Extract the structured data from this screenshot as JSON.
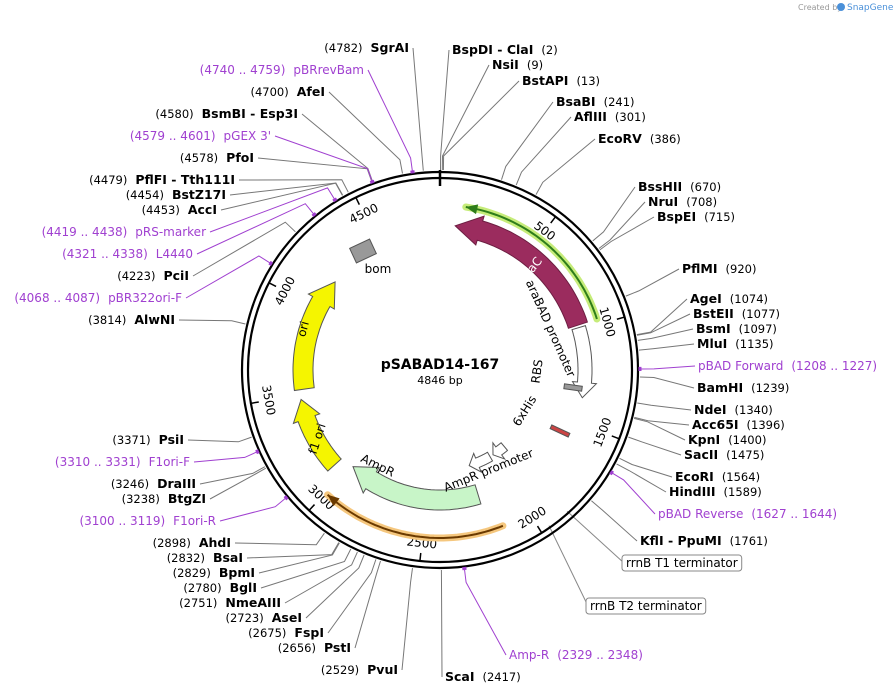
{
  "watermark": {
    "prefix": "Created by",
    "brand": "SnapGene"
  },
  "map": {
    "name": "pSABAD14-167",
    "size": "4846 bp"
  },
  "ruler": [
    "500",
    "1000",
    "1500",
    "2000",
    "2500",
    "3000",
    "3500",
    "4000",
    "4500"
  ],
  "features": [
    {
      "label": "araC"
    },
    {
      "label": "araBAD promoter"
    },
    {
      "label": "RBS"
    },
    {
      "label": "6xHis"
    },
    {
      "label": "AmpR promoter"
    },
    {
      "label": "AmpR"
    },
    {
      "label": "ori"
    },
    {
      "label": "f1 ori"
    },
    {
      "label": "bom"
    }
  ],
  "terminators": [
    "rrnB T1 terminator",
    "rrnB T2 terminator"
  ],
  "sites": [
    {
      "name": "SgrAI",
      "position": "(4782)"
    },
    {
      "name": "AfeI",
      "position": "(4700)"
    },
    {
      "name": "BsmBI  -  Esp3I",
      "position": "(4580)"
    },
    {
      "name": "PfoI",
      "position": "(4578)"
    },
    {
      "name": "PflFI  -  Tth111I",
      "position": "(4479)"
    },
    {
      "name": "BstZ17I",
      "position": "(4454)"
    },
    {
      "name": "AccI",
      "position": "(4453)"
    },
    {
      "name": "PciI",
      "position": "(4223)"
    },
    {
      "name": "AlwNI",
      "position": "(3814)"
    },
    {
      "name": "PsiI",
      "position": "(3371)"
    },
    {
      "name": "DraIII",
      "position": "(3246)"
    },
    {
      "name": "BtgZI",
      "position": "(3238)"
    },
    {
      "name": "AhdI",
      "position": "(2898)"
    },
    {
      "name": "BsaI",
      "position": "(2832)"
    },
    {
      "name": "BpmI",
      "position": "(2829)"
    },
    {
      "name": "BglI",
      "position": "(2780)"
    },
    {
      "name": "NmeAIII",
      "position": "(2751)"
    },
    {
      "name": "AseI",
      "position": "(2723)"
    },
    {
      "name": "FspI",
      "position": "(2675)"
    },
    {
      "name": "PstI",
      "position": "(2656)"
    },
    {
      "name": "PvuI",
      "position": "(2529)"
    },
    {
      "name": "ScaI",
      "position": "(2417)"
    },
    {
      "name": "KflI  -  PpuMI",
      "position": "(1761)"
    },
    {
      "name": "HindIII",
      "position": "(1589)"
    },
    {
      "name": "EcoRI",
      "position": "(1564)"
    },
    {
      "name": "SacII",
      "position": "(1475)"
    },
    {
      "name": "KpnI",
      "position": "(1400)"
    },
    {
      "name": "Acc65I",
      "position": "(1396)"
    },
    {
      "name": "NdeI",
      "position": "(1340)"
    },
    {
      "name": "BamHI",
      "position": "(1239)"
    },
    {
      "name": "MluI",
      "position": "(1135)"
    },
    {
      "name": "BsmI",
      "position": "(1097)"
    },
    {
      "name": "BstEII",
      "position": "(1077)"
    },
    {
      "name": "AgeI",
      "position": "(1074)"
    },
    {
      "name": "PflMI",
      "position": "(920)"
    },
    {
      "name": "BspEI",
      "position": "(715)"
    },
    {
      "name": "NruI",
      "position": "(708)"
    },
    {
      "name": "BssHII",
      "position": "(670)"
    },
    {
      "name": "EcoRV",
      "position": "(386)"
    },
    {
      "name": "AflIII",
      "position": "(301)"
    },
    {
      "name": "BsaBI",
      "position": "(241)"
    },
    {
      "name": "BstAPI",
      "position": "(13)"
    },
    {
      "name": "NsiI",
      "position": "(9)"
    },
    {
      "name": "BspDI  -  ClaI",
      "position": "(2)"
    }
  ],
  "primers": [
    {
      "name": "pBRrevBam",
      "range": "(4740 .. 4759)"
    },
    {
      "name": "pGEX 3'",
      "range": "(4579 .. 4601)"
    },
    {
      "name": "pRS-marker",
      "range": "(4419 .. 4438)"
    },
    {
      "name": "L4440",
      "range": "(4321 .. 4338)"
    },
    {
      "name": "pBR322ori-F",
      "range": "(4068 .. 4087)"
    },
    {
      "name": "F1ori-F",
      "range": "(3310 .. 3331)"
    },
    {
      "name": "F1ori-R",
      "range": "(3100 .. 3119)"
    },
    {
      "name": "Amp-R",
      "range": "(2329 .. 2348)"
    },
    {
      "name": "pBAD Reverse",
      "range": "(1627 .. 1644)"
    },
    {
      "name": "pBAD Forward",
      "range": "(1208 .. 1227)"
    }
  ]
}
